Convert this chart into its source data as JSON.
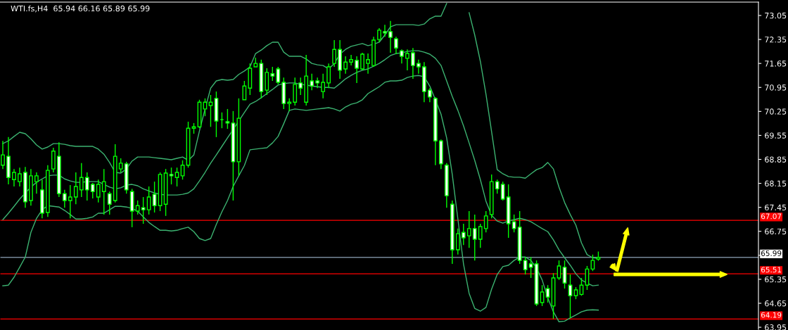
{
  "chart_data": {
    "type": "candlestick",
    "title": "WTI.fs,H4  65.94 66.16 65.89 65.99",
    "categories": [
      null,
      null,
      null,
      null,
      null,
      null,
      null,
      null,
      null,
      null,
      null,
      null,
      null,
      null,
      null,
      null,
      null,
      null,
      null,
      null,
      null,
      null,
      null,
      null,
      null,
      null,
      null,
      null,
      null,
      null,
      null,
      null,
      null,
      null,
      null,
      null,
      null,
      null,
      null,
      null,
      null,
      null,
      null,
      null,
      null,
      null,
      null,
      null,
      null,
      null,
      null,
      null,
      null,
      null,
      null,
      null,
      null,
      null,
      null,
      null,
      null,
      null,
      null,
      null,
      null,
      null,
      null,
      null,
      null,
      null,
      null,
      null,
      null,
      null,
      null,
      null,
      null,
      null,
      null,
      null,
      null,
      null,
      null,
      null,
      null,
      null,
      null,
      null,
      null,
      null,
      null,
      null,
      null,
      null,
      null,
      null,
      null,
      null,
      null,
      null,
      null,
      null,
      null,
      null,
      null,
      null,
      null,
      null,
      null,
      null,
      null,
      null,
      null,
      null,
      null,
      null,
      null,
      null,
      null,
      null,
      null,
      null,
      null,
      null,
      null,
      null,
      null,
      null,
      null,
      null,
      null,
      null,
      null,
      null,
      null
    ],
    "ohlc": [
      [
        68.68,
        69.39,
        68.57,
        68.98
      ],
      [
        68.94,
        69.5,
        68.12,
        68.32
      ],
      [
        68.26,
        68.57,
        68.06,
        68.47
      ],
      [
        68.2,
        68.61,
        68.06,
        68.43
      ],
      [
        68.47,
        68.63,
        67.44,
        67.61
      ],
      [
        67.65,
        68.57,
        67.5,
        68.37
      ],
      [
        68.2,
        68.47,
        67.85,
        68.37
      ],
      [
        67.96,
        68.26,
        67.13,
        67.28
      ],
      [
        67.3,
        68.68,
        67.17,
        68.53
      ],
      [
        68.57,
        69.19,
        68.47,
        69.09
      ],
      [
        68.94,
        69.35,
        67.75,
        67.85
      ],
      [
        67.85,
        67.96,
        67.44,
        67.65
      ],
      [
        67.65,
        68.1,
        67.13,
        67.75
      ],
      [
        67.75,
        68.47,
        67.54,
        68.06
      ],
      [
        67.96,
        68.74,
        67.75,
        68.32
      ],
      [
        68.32,
        68.47,
        67.65,
        67.96
      ],
      [
        68.12,
        68.16,
        67.71,
        67.91
      ],
      [
        67.75,
        68.26,
        67.59,
        68.12
      ],
      [
        67.91,
        68.57,
        67.24,
        68.2
      ],
      [
        67.85,
        67.91,
        67.24,
        67.54
      ],
      [
        67.65,
        69.29,
        67.59,
        68.94
      ],
      [
        68.57,
        68.88,
        68.47,
        68.74
      ],
      [
        68.72,
        68.78,
        67.85,
        67.96
      ],
      [
        67.91,
        67.99,
        66.87,
        67.34
      ],
      [
        67.34,
        67.65,
        67.24,
        67.5
      ],
      [
        67.44,
        67.75,
        66.97,
        67.38
      ],
      [
        67.38,
        68.06,
        67.24,
        67.75
      ],
      [
        67.83,
        68.2,
        67.3,
        67.5
      ],
      [
        67.5,
        68.47,
        67.34,
        68.41
      ],
      [
        67.54,
        68.57,
        67.2,
        68.45
      ],
      [
        68.41,
        68.61,
        68.12,
        68.37
      ],
      [
        68.32,
        68.61,
        68.06,
        68.47
      ],
      [
        68.37,
        68.82,
        68.26,
        68.68
      ],
      [
        68.68,
        69.95,
        68.61,
        69.76
      ],
      [
        69.76,
        69.91,
        69.6,
        69.8
      ],
      [
        69.8,
        70.59,
        69.76,
        70.52
      ],
      [
        70.32,
        70.63,
        70.11,
        70.52
      ],
      [
        70.42,
        70.73,
        69.8,
        70.52
      ],
      [
        70.63,
        70.83,
        69.5,
        69.97
      ],
      [
        70.01,
        70.22,
        69.76,
        70.01
      ],
      [
        69.95,
        70.32,
        69.74,
        69.91
      ],
      [
        69.91,
        70.26,
        67.65,
        68.78
      ],
      [
        68.78,
        70.63,
        68.37,
        70.05
      ],
      [
        70.59,
        71.14,
        70.59,
        70.99
      ],
      [
        70.93,
        71.65,
        70.73,
        71.51
      ],
      [
        71.55,
        71.82,
        71.55,
        71.65
      ],
      [
        71.65,
        71.76,
        70.63,
        70.83
      ],
      [
        70.87,
        71.51,
        70.73,
        71.39
      ],
      [
        71.35,
        71.55,
        71.14,
        71.28
      ],
      [
        71.49,
        71.55,
        71.04,
        71.1
      ],
      [
        71.1,
        71.24,
        70.32,
        70.48
      ],
      [
        70.48,
        70.63,
        70.26,
        70.52
      ],
      [
        70.52,
        71.24,
        70.42,
        71.04
      ],
      [
        71.08,
        71.24,
        70.73,
        70.93
      ],
      [
        70.52,
        71.9,
        70.42,
        71.28
      ],
      [
        71.14,
        71.35,
        70.87,
        70.99
      ],
      [
        71.14,
        71.24,
        70.93,
        71.08
      ],
      [
        70.83,
        71.35,
        70.63,
        71.1
      ],
      [
        71.08,
        71.65,
        70.93,
        71.55
      ],
      [
        71.65,
        72.33,
        71.55,
        72.06
      ],
      [
        72.06,
        72.33,
        71.2,
        71.45
      ],
      [
        71.49,
        71.86,
        71.35,
        71.69
      ],
      [
        71.69,
        71.9,
        71.59,
        71.76
      ],
      [
        71.74,
        71.86,
        71.08,
        71.51
      ],
      [
        71.49,
        71.96,
        71.45,
        71.92
      ],
      [
        71.65,
        71.94,
        71.35,
        71.76
      ],
      [
        71.59,
        72.43,
        71.55,
        72.33
      ],
      [
        72.35,
        72.68,
        72.27,
        72.62
      ],
      [
        72.58,
        72.78,
        72.43,
        72.54
      ],
      [
        72.58,
        72.89,
        71.96,
        72.41
      ],
      [
        72.37,
        72.43,
        71.92,
        72.1
      ],
      [
        72.02,
        72.06,
        71.65,
        71.86
      ],
      [
        71.8,
        72.06,
        71.45,
        71.94
      ],
      [
        71.96,
        72.1,
        71.2,
        71.59
      ],
      [
        71.65,
        71.76,
        71.35,
        71.55
      ],
      [
        71.55,
        71.69,
        70.52,
        70.83
      ],
      [
        70.87,
        70.93,
        70.52,
        70.67
      ],
      [
        70.63,
        70.67,
        68.68,
        69.39
      ],
      [
        69.39,
        69.43,
        68.57,
        68.72
      ],
      [
        68.68,
        68.74,
        67.44,
        67.79
      ],
      [
        67.54,
        67.65,
        65.8,
        66.21
      ],
      [
        66.21,
        66.83,
        66.07,
        66.68
      ],
      [
        66.72,
        66.97,
        66.35,
        66.56
      ],
      [
        66.62,
        67.34,
        66.27,
        66.83
      ],
      [
        66.83,
        67.24,
        65.9,
        66.52
      ],
      [
        66.52,
        66.97,
        66.27,
        66.89
      ],
      [
        66.83,
        67.34,
        66.72,
        67.2
      ],
      [
        67.24,
        68.41,
        67.13,
        68.2
      ],
      [
        68.2,
        68.26,
        67.85,
        67.99
      ],
      [
        68.12,
        68.2,
        67.65,
        67.69
      ],
      [
        67.75,
        68.12,
        66.56,
        66.97
      ],
      [
        67.03,
        67.24,
        66.72,
        66.83
      ],
      [
        66.87,
        67.34,
        65.8,
        65.9
      ],
      [
        65.9,
        66.0,
        65.49,
        65.63
      ],
      [
        65.8,
        66.0,
        65.39,
        65.7
      ],
      [
        65.8,
        65.9,
        64.57,
        64.63
      ],
      [
        64.67,
        65.18,
        64.57,
        64.98
      ],
      [
        65.08,
        65.18,
        64.67,
        64.83
      ],
      [
        64.57,
        65.53,
        64.2,
        65.39
      ],
      [
        65.39,
        65.9,
        65.33,
        65.74
      ],
      [
        65.7,
        65.9,
        65.08,
        65.24
      ],
      [
        65.18,
        65.49,
        64.22,
        64.87
      ],
      [
        64.87,
        65.12,
        64.77,
        65.04
      ],
      [
        64.91,
        65.39,
        64.87,
        65.18
      ],
      [
        65.18,
        65.74,
        65.04,
        65.65
      ],
      [
        65.65,
        66.07,
        65.59,
        65.9
      ],
      [
        65.94,
        66.16,
        65.89,
        65.99
      ],
      null,
      null,
      null,
      null,
      null,
      null,
      null,
      null,
      null,
      null,
      null,
      null,
      null,
      null,
      null,
      null,
      null,
      null,
      null,
      null,
      null,
      null,
      null,
      null,
      null,
      null,
      null,
      null
    ],
    "color": "#00ff00",
    "series": [
      {
        "type": "line",
        "color": "#3cb371",
        "values": [
          69.31,
          69.39,
          69.52,
          69.64,
          69.6,
          69.45,
          69.27,
          69.15,
          69.21,
          69.31,
          69.31,
          69.29,
          69.25,
          69.23,
          69.23,
          69.23,
          69.23,
          69.15,
          69.0,
          68.76,
          68.47,
          68.45,
          68.57,
          68.8,
          68.92,
          68.92,
          68.92,
          68.9,
          68.88,
          68.86,
          68.84,
          68.88,
          68.92,
          68.82,
          68.98,
          69.68,
          70.32,
          70.93,
          71.14,
          71.18,
          71.16,
          71.18,
          71.33,
          71.43,
          71.55,
          71.94,
          72.04,
          72.17,
          72.27,
          72.27,
          71.98,
          71.86,
          71.86,
          71.86,
          71.78,
          71.65,
          71.61,
          71.59,
          71.49,
          71.65,
          71.92,
          72.06,
          72.15,
          72.19,
          72.23,
          72.17,
          72.21,
          72.27,
          72.48,
          72.72,
          72.78,
          72.78,
          72.78,
          72.78,
          72.76,
          72.8,
          72.95,
          73.03,
          73.03,
          73.4,
          null,
          null,
          null,
          73.13,
          72.48,
          71.71,
          70.75,
          69.66,
          68.55,
          68.43,
          68.35,
          68.33,
          68.33,
          68.3,
          68.43,
          68.55,
          68.61,
          68.76,
          68.57,
          68.04,
          67.59,
          67.24,
          66.93,
          66.41,
          66.07,
          65.98,
          65.96,
          null,
          null,
          null,
          null,
          null,
          null,
          null,
          null,
          null,
          null,
          null,
          null,
          null,
          null,
          null,
          null,
          null,
          null,
          null,
          null,
          null,
          null,
          null,
          null,
          null,
          null,
          null,
          null
        ]
      },
      {
        "type": "line",
        "color": "#3cb371",
        "values": [
          67.09,
          67.28,
          67.48,
          67.69,
          67.87,
          68.04,
          68.18,
          68.28,
          68.37,
          68.39,
          68.39,
          68.28,
          68.22,
          68.18,
          68.18,
          68.2,
          68.2,
          68.2,
          68.12,
          68.04,
          67.99,
          68.02,
          68.1,
          68.12,
          68.08,
          67.99,
          67.93,
          67.87,
          67.83,
          67.81,
          67.81,
          67.81,
          67.83,
          67.87,
          67.99,
          68.22,
          68.47,
          68.74,
          68.98,
          69.23,
          69.48,
          69.72,
          69.97,
          70.22,
          70.46,
          70.54,
          70.65,
          70.77,
          70.89,
          71.02,
          71.06,
          71.08,
          71.08,
          71.04,
          71.02,
          70.99,
          70.97,
          70.95,
          70.95,
          70.93,
          71.06,
          71.2,
          71.3,
          71.39,
          71.45,
          71.49,
          71.57,
          71.65,
          71.76,
          71.88,
          71.94,
          71.96,
          72.0,
          72.02,
          72.02,
          71.98,
          71.92,
          71.8,
          71.59,
          71.14,
          70.69,
          70.28,
          69.83,
          69.33,
          68.82,
          68.26,
          67.63,
          67.22,
          67.05,
          66.99,
          67.05,
          67.09,
          67.13,
          67.09,
          67.03,
          66.93,
          66.83,
          66.74,
          66.5,
          66.21,
          65.98,
          65.76,
          65.51,
          65.33,
          65.24,
          65.16,
          65.18,
          null,
          null,
          null,
          null,
          null,
          null,
          null,
          null,
          null,
          null,
          null,
          null,
          null,
          null,
          null,
          null,
          null,
          null,
          null,
          null,
          null,
          null,
          null,
          null,
          null,
          null,
          null,
          null
        ]
      },
      {
        "type": "line",
        "color": "#3cb371",
        "values": [
          65.16,
          65.18,
          65.41,
          65.7,
          66.0,
          66.72,
          67.13,
          67.38,
          67.5,
          67.48,
          67.46,
          67.36,
          67.24,
          67.11,
          67.11,
          67.13,
          67.17,
          67.28,
          67.28,
          67.38,
          67.48,
          67.48,
          67.46,
          67.42,
          67.34,
          67.17,
          67.01,
          66.89,
          66.78,
          66.78,
          66.76,
          66.78,
          66.83,
          66.87,
          66.74,
          66.54,
          66.48,
          66.54,
          66.95,
          67.32,
          67.65,
          68.06,
          68.37,
          68.67,
          69.13,
          69.15,
          69.17,
          69.19,
          69.33,
          69.52,
          69.89,
          70.28,
          70.32,
          70.3,
          70.28,
          70.3,
          70.32,
          70.34,
          70.36,
          70.32,
          70.26,
          70.38,
          70.46,
          70.5,
          70.59,
          70.77,
          70.87,
          70.97,
          71.1,
          71.14,
          71.14,
          71.16,
          71.24,
          71.28,
          71.3,
          71.26,
          70.99,
          70.59,
          70.17,
          69.48,
          68.41,
          67.11,
          65.8,
          64.94,
          64.5,
          64.42,
          64.53,
          65.06,
          65.49,
          65.72,
          65.76,
          65.9,
          66.0,
          66.0,
          65.9,
          65.68,
          65.33,
          64.81,
          64.4,
          64.11,
          64.13,
          64.22,
          64.31,
          64.4,
          64.45,
          64.46,
          64.45,
          null,
          null,
          null,
          null,
          null,
          null,
          null,
          null,
          null,
          null,
          null,
          null,
          null,
          null,
          null,
          null,
          null,
          null,
          null,
          null,
          null,
          null,
          null,
          null,
          null,
          null,
          null,
          null
        ]
      }
    ],
    "ylim": [
      63.87,
      73.44
    ],
    "yticks": [
      73.05,
      72.35,
      71.65,
      70.95,
      70.25,
      69.55,
      68.85,
      68.15,
      67.45,
      66.75,
      {
        "value": 66.05,
        "label": null
      },
      65.35,
      64.65,
      63.95
    ],
    "tick_labels": "y",
    "ref_lines": [
      {
        "axis": "y",
        "value": 67.07,
        "label": "67.07",
        "color": "#ff0000"
      },
      {
        "axis": "y",
        "value": 65.99,
        "label": "65.99",
        "color": "#778899"
      },
      {
        "axis": "y",
        "value": 65.51,
        "label": "65.51",
        "color": "#ff0000"
      },
      {
        "axis": "y",
        "value": 64.19,
        "label": "64.19",
        "color": "#ff0000"
      }
    ]
  }
}
